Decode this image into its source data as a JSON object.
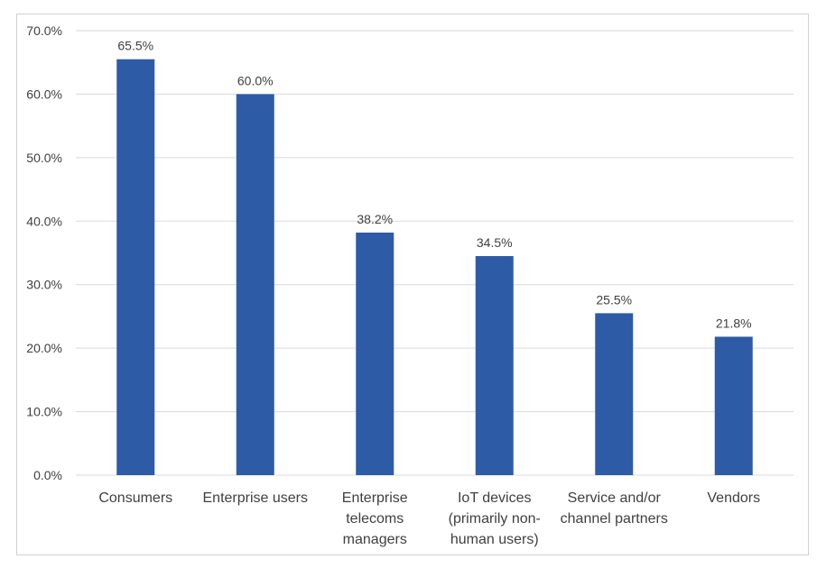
{
  "chart_data": {
    "type": "bar",
    "title": "",
    "xlabel": "",
    "ylabel": "",
    "categories": [
      [
        "Consumers"
      ],
      [
        "Enterprise users"
      ],
      [
        "Enterprise",
        "telecoms",
        "managers"
      ],
      [
        "IoT devices",
        "(primarily non-",
        "human users)"
      ],
      [
        "Service and/or",
        "channel partners"
      ],
      [
        "Vendors"
      ]
    ],
    "values": [
      65.5,
      60.0,
      38.2,
      34.5,
      25.5,
      21.8
    ],
    "data_labels": [
      "65.5%",
      "60.0%",
      "38.2%",
      "34.5%",
      "25.5%",
      "21.8%"
    ],
    "ylim": [
      0,
      70
    ],
    "yticks": [
      0,
      10,
      20,
      30,
      40,
      50,
      60,
      70
    ],
    "ytick_labels": [
      "0.0%",
      "10.0%",
      "20.0%",
      "30.0%",
      "40.0%",
      "50.0%",
      "60.0%",
      "70.0%"
    ],
    "grid": true,
    "legend": "none",
    "bar_color": "#2e5ba6",
    "grid_color": "#d9d9d9"
  }
}
